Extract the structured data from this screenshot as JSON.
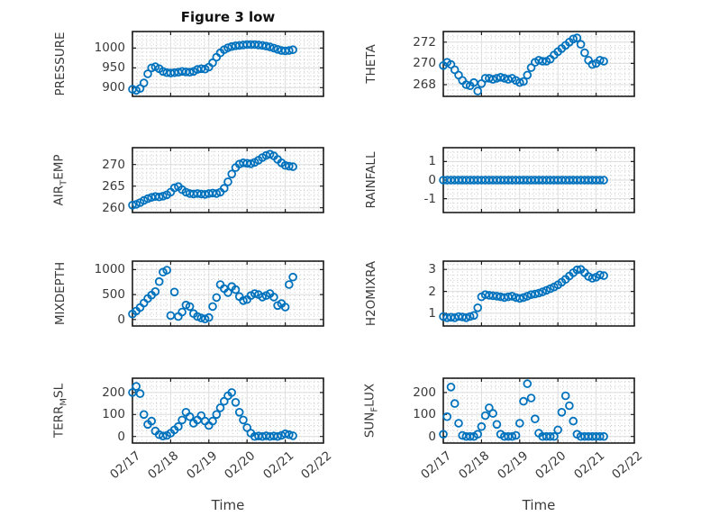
{
  "figure": {
    "title": "Figure 3 low",
    "xlabel": "Time",
    "x_tick_labels": [
      "02/17",
      "02/18",
      "02/19",
      "02/20",
      "02/21",
      "02/22"
    ],
    "x_unit": "days since 02/17 00:00"
  },
  "colors": {
    "marker": "#0072BD",
    "axis": "#1c1c1c",
    "major_grid": "#dcdcdc",
    "minor_grid": "#c8c8c8",
    "text": "#3a3a3a"
  },
  "chart_data": [
    {
      "id": "pressure",
      "type": "scatter",
      "ylabel": "PRESSURE",
      "ylabel_parts": [
        {
          "text": "PRESSURE"
        }
      ],
      "layout": {
        "col": 0,
        "row": 0
      },
      "yticks": [
        900,
        950,
        1000
      ],
      "ytick_labels": [
        "900",
        "950",
        "1000"
      ],
      "ylim": [
        878,
        1042
      ],
      "y_minor_step": 10,
      "xlim": [
        0,
        5
      ],
      "x_minor_step": 0.125,
      "x_start_day": 0,
      "x_step_days": 0.1,
      "values": [
        896,
        893,
        898,
        912,
        935,
        950,
        953,
        948,
        941,
        938,
        937,
        938,
        939,
        941,
        940,
        939,
        941,
        946,
        948,
        947,
        952,
        963,
        977,
        988,
        996,
        1001,
        1004,
        1006,
        1007,
        1008,
        1009,
        1009,
        1009,
        1008,
        1007,
        1005,
        1003,
        1000,
        997,
        994,
        993,
        994,
        996
      ]
    },
    {
      "id": "theta",
      "type": "scatter",
      "ylabel": "THETA",
      "ylabel_parts": [
        {
          "text": "THETA"
        }
      ],
      "layout": {
        "col": 1,
        "row": 0
      },
      "yticks": [
        268,
        270,
        272
      ],
      "ytick_labels": [
        "268",
        "270",
        "272"
      ],
      "ylim": [
        266.9,
        273.0
      ],
      "y_minor_step": 0.5,
      "xlim": [
        0,
        5
      ],
      "x_minor_step": 0.125,
      "x_start_day": 0,
      "x_step_days": 0.1,
      "values": [
        269.8,
        270.1,
        269.9,
        269.4,
        268.9,
        268.4,
        268.0,
        267.9,
        268.2,
        267.4,
        268.1,
        268.6,
        268.6,
        268.5,
        268.6,
        268.7,
        268.6,
        268.5,
        268.6,
        268.4,
        268.2,
        268.3,
        268.9,
        269.6,
        270.1,
        270.3,
        270.2,
        270.2,
        270.4,
        270.8,
        271.1,
        271.4,
        271.7,
        272.0,
        272.3,
        272.4,
        271.8,
        271.0,
        270.3,
        269.9,
        270.0,
        270.3,
        270.2
      ]
    },
    {
      "id": "airtemp",
      "type": "scatter",
      "ylabel": "AIR_TEMP",
      "ylabel_parts": [
        {
          "text": "AIR"
        },
        {
          "text": "T",
          "sub": true
        },
        {
          "text": "EMP"
        }
      ],
      "layout": {
        "col": 0,
        "row": 1
      },
      "yticks": [
        260,
        265,
        270
      ],
      "ytick_labels": [
        "260",
        "265",
        "270"
      ],
      "ylim": [
        258.9,
        273.9
      ],
      "y_minor_step": 1,
      "xlim": [
        0,
        5
      ],
      "x_minor_step": 0.125,
      "x_start_day": 0,
      "x_step_days": 0.1,
      "values": [
        260.6,
        260.8,
        261.2,
        261.7,
        262.1,
        262.4,
        262.6,
        262.5,
        262.7,
        263.0,
        263.6,
        264.6,
        264.9,
        264.2,
        263.6,
        263.3,
        263.2,
        263.3,
        263.2,
        263.1,
        263.3,
        263.4,
        263.3,
        263.6,
        264.5,
        266.0,
        267.8,
        269.3,
        270.1,
        270.4,
        270.3,
        270.2,
        270.5,
        271.0,
        271.6,
        272.1,
        272.4,
        272.0,
        271.2,
        270.4,
        269.8,
        269.6,
        269.5
      ]
    },
    {
      "id": "rainfall",
      "type": "scatter",
      "ylabel": "RAINFALL",
      "ylabel_parts": [
        {
          "text": "RAINFALL"
        }
      ],
      "layout": {
        "col": 1,
        "row": 1
      },
      "yticks": [
        -1,
        0,
        1
      ],
      "ytick_labels": [
        "-1",
        "0",
        "1"
      ],
      "ylim": [
        -1.75,
        1.75
      ],
      "y_minor_step": 0.25,
      "xlim": [
        0,
        5
      ],
      "x_minor_step": 0.125,
      "x_start_day": 0,
      "x_step_days": 0.1,
      "values": [
        0,
        0,
        0,
        0,
        0,
        0,
        0,
        0,
        0,
        0,
        0,
        0,
        0,
        0,
        0,
        0,
        0,
        0,
        0,
        0,
        0,
        0,
        0,
        0,
        0,
        0,
        0,
        0,
        0,
        0,
        0,
        0,
        0,
        0,
        0,
        0,
        0,
        0,
        0,
        0,
        0,
        0,
        0
      ]
    },
    {
      "id": "mixdepth",
      "type": "scatter",
      "ylabel": "MIXDEPTH",
      "ylabel_parts": [
        {
          "text": "MIXDEPTH"
        }
      ],
      "layout": {
        "col": 0,
        "row": 2
      },
      "yticks": [
        0,
        500,
        1000
      ],
      "ytick_labels": [
        "0",
        "500",
        "1000"
      ],
      "ylim": [
        -130,
        1170
      ],
      "y_minor_step": 100,
      "xlim": [
        0,
        5
      ],
      "x_minor_step": 0.125,
      "x_start_day": 0,
      "x_step_days": 0.1,
      "values": [
        110,
        170,
        240,
        330,
        420,
        490,
        560,
        760,
        950,
        990,
        80,
        550,
        60,
        150,
        290,
        260,
        120,
        60,
        30,
        10,
        40,
        260,
        440,
        700,
        620,
        540,
        660,
        600,
        460,
        380,
        400,
        480,
        520,
        500,
        450,
        480,
        520,
        450,
        280,
        320,
        250,
        700,
        850
      ]
    },
    {
      "id": "h2omixra",
      "type": "scatter",
      "ylabel": "H2OMIXRA",
      "ylabel_parts": [
        {
          "text": "H2OMIXRA"
        }
      ],
      "layout": {
        "col": 1,
        "row": 2
      },
      "yticks": [
        1,
        2,
        3
      ],
      "ytick_labels": [
        "1",
        "2",
        "3"
      ],
      "ylim": [
        0.42,
        3.38
      ],
      "y_minor_step": 0.25,
      "xlim": [
        0,
        5
      ],
      "x_minor_step": 0.125,
      "x_start_day": 0,
      "x_step_days": 0.1,
      "values": [
        0.85,
        0.8,
        0.82,
        0.8,
        0.85,
        0.83,
        0.8,
        0.85,
        0.9,
        1.25,
        1.75,
        1.85,
        1.82,
        1.8,
        1.78,
        1.75,
        1.72,
        1.75,
        1.78,
        1.72,
        1.68,
        1.72,
        1.78,
        1.85,
        1.88,
        1.92,
        1.98,
        2.05,
        2.12,
        2.2,
        2.3,
        2.42,
        2.55,
        2.7,
        2.85,
        2.98,
        3.0,
        2.85,
        2.68,
        2.6,
        2.65,
        2.75,
        2.72
      ]
    },
    {
      "id": "terrmsl",
      "type": "scatter",
      "ylabel": "TERR_MSL",
      "ylabel_parts": [
        {
          "text": "TERR"
        },
        {
          "text": "M",
          "sub": true
        },
        {
          "text": "SL"
        }
      ],
      "layout": {
        "col": 0,
        "row": 3
      },
      "yticks": [
        0,
        100,
        200
      ],
      "ytick_labels": [
        "0",
        "100",
        "200"
      ],
      "ylim": [
        -30,
        265
      ],
      "y_minor_step": 25,
      "xlim": [
        0,
        5
      ],
      "x_minor_step": 0.125,
      "x_start_day": 0,
      "x_step_days": 0.1,
      "values": [
        200,
        228,
        195,
        100,
        55,
        70,
        25,
        8,
        2,
        5,
        15,
        30,
        45,
        75,
        110,
        90,
        60,
        75,
        95,
        70,
        50,
        70,
        100,
        130,
        160,
        185,
        200,
        155,
        110,
        75,
        40,
        15,
        0,
        2,
        0,
        3,
        0,
        2,
        0,
        5,
        12,
        8,
        3
      ]
    },
    {
      "id": "sunflux",
      "type": "scatter",
      "ylabel": "SUN_FLUX",
      "ylabel_parts": [
        {
          "text": "SUN"
        },
        {
          "text": "F",
          "sub": true
        },
        {
          "text": "LUX"
        }
      ],
      "layout": {
        "col": 1,
        "row": 3
      },
      "yticks": [
        0,
        100,
        200
      ],
      "ytick_labels": [
        "0",
        "100",
        "200"
      ],
      "ylim": [
        -30,
        265
      ],
      "y_minor_step": 25,
      "xlim": [
        0,
        5
      ],
      "x_minor_step": 0.125,
      "x_start_day": 0,
      "x_step_days": 0.1,
      "values": [
        10,
        90,
        225,
        150,
        60,
        5,
        0,
        0,
        0,
        10,
        45,
        95,
        130,
        105,
        55,
        10,
        0,
        0,
        0,
        5,
        60,
        160,
        240,
        175,
        80,
        15,
        0,
        0,
        0,
        0,
        30,
        110,
        185,
        140,
        70,
        10,
        0,
        0,
        0,
        0,
        0,
        0,
        0
      ]
    }
  ]
}
